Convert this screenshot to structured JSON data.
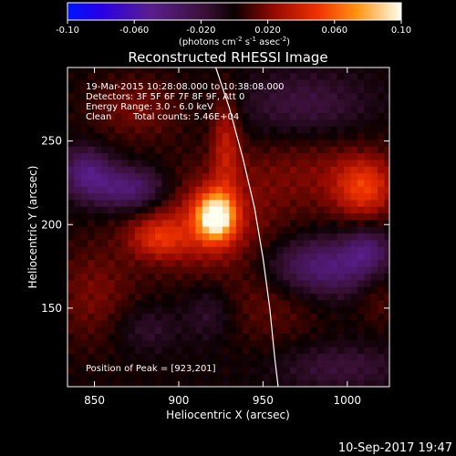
{
  "chart_data": {
    "type": "heatmap",
    "title": "Reconstructed RHESSI Image",
    "xlabel": "Heliocentric X (arcsec)",
    "ylabel": "Heliocentric Y (arcsec)",
    "xlim": [
      834,
      1025
    ],
    "ylim": [
      103,
      294
    ],
    "x_ticks": [
      "850",
      "900",
      "950",
      "1000"
    ],
    "y_ticks": [
      "150",
      "200",
      "250"
    ],
    "colorbar": {
      "min": -0.1,
      "max": 0.1,
      "tick_labels": [
        "-0.10",
        "-0.060",
        "-0.020",
        "0.020",
        "0.060",
        "0.10"
      ],
      "units_prefix": "(photons cm",
      "units_exp1": "-2",
      "units_mid": " s",
      "units_exp2": "-1",
      "units_mid2": " asec",
      "units_exp3": "-2",
      "units_suffix": ")"
    },
    "annotations": {
      "line1": "19-Mar-2015 10:28:08.000 to 10:38:08.000",
      "line2": "Detectors: 3F 5F 6F 7F 8F 9F, Att 0",
      "line3": "Energy Range: 3.0 - 6.0 keV",
      "line4_a": "Clean",
      "line4_b": "Total counts: 5.46E+04",
      "peak": "Position of Peak = [923,201]"
    },
    "peak_position": [
      923,
      201
    ],
    "limb": [
      [
        922,
        294
      ],
      [
        930,
        270
      ],
      [
        938,
        240
      ],
      [
        945,
        210
      ],
      [
        950,
        180
      ],
      [
        954,
        150
      ],
      [
        957,
        120
      ],
      [
        959,
        103
      ]
    ],
    "sources": [
      {
        "x": 922,
        "y": 205,
        "sx": 8,
        "sy": 10,
        "amp": 0.09
      },
      {
        "x": 912,
        "y": 200,
        "sx": 26,
        "sy": 20,
        "amp": 0.03
      },
      {
        "x": 928,
        "y": 250,
        "sx": 6,
        "sy": 22,
        "amp": 0.03
      },
      {
        "x": 875,
        "y": 270,
        "sx": 20,
        "sy": 14,
        "amp": 0.018
      },
      {
        "x": 888,
        "y": 192,
        "sx": 12,
        "sy": 8,
        "amp": 0.03
      },
      {
        "x": 980,
        "y": 230,
        "sx": 40,
        "sy": 18,
        "amp": 0.018
      },
      {
        "x": 1010,
        "y": 222,
        "sx": 12,
        "sy": 12,
        "amp": 0.04
      },
      {
        "x": 850,
        "y": 158,
        "sx": 18,
        "sy": 22,
        "amp": 0.018
      },
      {
        "x": 955,
        "y": 158,
        "sx": 22,
        "sy": 22,
        "amp": 0.015
      },
      {
        "x": 1018,
        "y": 160,
        "sx": 8,
        "sy": 14,
        "amp": 0.014
      },
      {
        "x": 870,
        "y": 222,
        "sx": 16,
        "sy": 9,
        "amp": -0.045
      },
      {
        "x": 845,
        "y": 232,
        "sx": 10,
        "sy": 10,
        "amp": -0.04
      },
      {
        "x": 985,
        "y": 175,
        "sx": 24,
        "sy": 12,
        "amp": -0.045
      },
      {
        "x": 1012,
        "y": 185,
        "sx": 9,
        "sy": 9,
        "amp": -0.03
      },
      {
        "x": 975,
        "y": 272,
        "sx": 28,
        "sy": 14,
        "amp": -0.02
      },
      {
        "x": 995,
        "y": 115,
        "sx": 28,
        "sy": 10,
        "amp": -0.018
      },
      {
        "x": 880,
        "y": 138,
        "sx": 14,
        "sy": 10,
        "amp": -0.015
      },
      {
        "x": 918,
        "y": 148,
        "sx": 10,
        "sy": 12,
        "amp": -0.015
      }
    ]
  },
  "footer": {
    "timestamp": "10-Sep-2017 19:47"
  }
}
